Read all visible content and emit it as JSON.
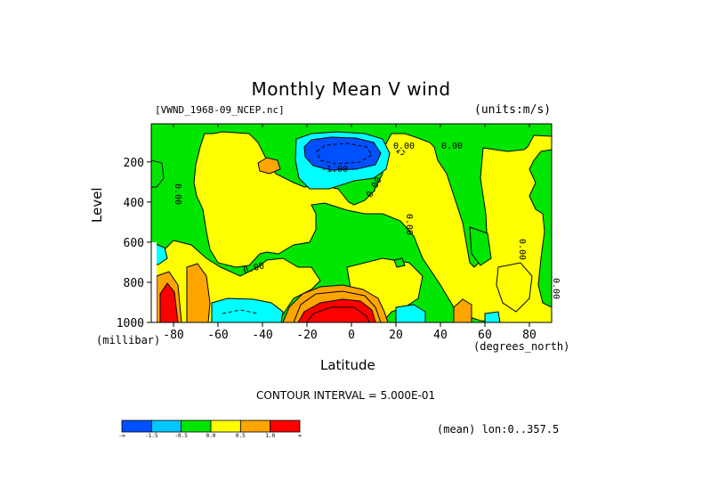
{
  "chart_data": {
    "type": "heatmap",
    "title": "Monthly Mean V wind",
    "dataset_label": "[VWND_1968-09_NCEP.nc]",
    "units_label": "(units:m/s)",
    "xlabel": "Latitude",
    "x_unit_label": "(degrees_north)",
    "ylabel": "Level",
    "y_unit_label": "(millibar)",
    "x_range": [
      -90,
      90
    ],
    "y_range": [
      1000,
      10
    ],
    "x_ticks": [
      -80,
      -60,
      -40,
      -20,
      0,
      20,
      40,
      60,
      80
    ],
    "y_ticks": [
      200,
      400,
      600,
      800,
      1000
    ],
    "contour_interval_text": "CONTOUR INTERVAL = 5.000E-01",
    "mean_text": "(mean) lon:0..357.5",
    "contour_labels": [
      "0.00",
      "0.00",
      "0.00",
      "0.00",
      "-1.00",
      "0.00",
      "0.00",
      "0.00",
      "0.00",
      "0.00"
    ],
    "colorbar": {
      "colors": [
        "#0050ff",
        "#00c8ff",
        "#00e600",
        "#ffff00",
        "#ffa500",
        "#ff0000"
      ],
      "labels": [
        "-∞",
        "-1.5",
        "-0.5",
        "0.0",
        "0.5",
        "1.0",
        "∞"
      ]
    },
    "regions": [
      {
        "level": "strong_negative",
        "color": "#0050ff",
        "lat_range": [
          -22,
          8
        ],
        "lev_range": [
          110,
          250
        ]
      },
      {
        "level": "negative",
        "color": "#00c8ff",
        "lat_range": [
          -24,
          14
        ],
        "lev_range": [
          60,
          310
        ]
      },
      {
        "level": "negative",
        "color": "#00c8ff",
        "lat_range": [
          -60,
          -30
        ],
        "lev_range": [
          870,
          1000
        ]
      },
      {
        "level": "negative",
        "color": "#00c8ff",
        "lat_range": [
          20,
          34
        ],
        "lev_range": [
          880,
          1000
        ]
      },
      {
        "level": "negative",
        "color": "#00c8ff",
        "lat_range": [
          -90,
          -84
        ],
        "lev_range": [
          600,
          700
        ]
      },
      {
        "level": "positive",
        "color": "#ffa500",
        "lat_range": [
          -22,
          16
        ],
        "lev_range": [
          800,
          1000
        ]
      },
      {
        "level": "positive",
        "color": "#ffa500",
        "lat_range": [
          -74,
          -70
        ],
        "lev_range": [
          700,
          1000
        ]
      },
      {
        "level": "positive",
        "color": "#ffa500",
        "lat_range": [
          -42,
          -32
        ],
        "lev_range": [
          180,
          250
        ]
      },
      {
        "level": "positive",
        "color": "#ffa500",
        "lat_range": [
          48,
          56
        ],
        "lev_range": [
          890,
          1000
        ]
      },
      {
        "level": "strong_positive",
        "color": "#ff0000",
        "lat_range": [
          -18,
          8
        ],
        "lev_range": [
          880,
          1000
        ]
      },
      {
        "level": "strong_positive",
        "color": "#ff0000",
        "lat_range": [
          -86,
          -80
        ],
        "lev_range": [
          830,
          1000
        ]
      }
    ]
  }
}
